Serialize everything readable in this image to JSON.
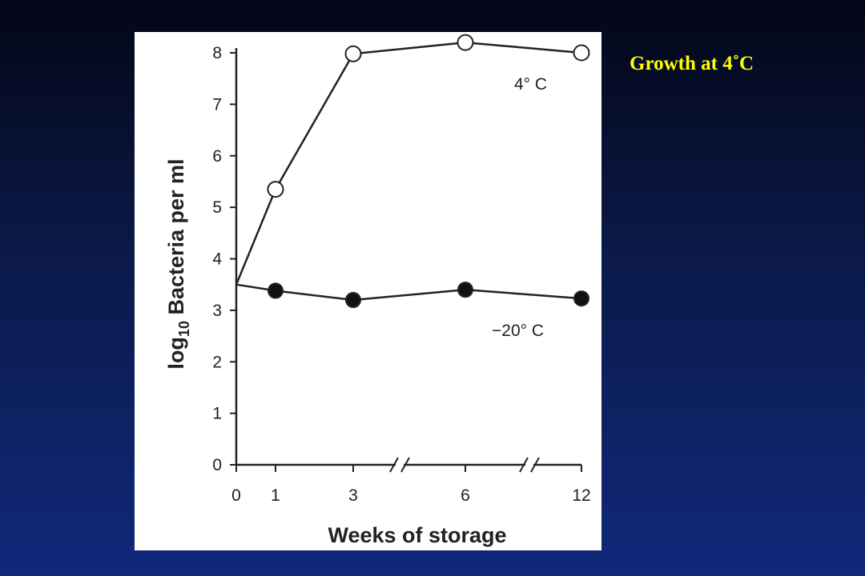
{
  "slide": {
    "title": "Growth at 4˚C"
  },
  "chart_data": {
    "type": "line",
    "xlabel": "Weeks of storage",
    "ylabel": "log10 Bacteria per ml",
    "ylabel_main": "log",
    "ylabel_sub": "10",
    "ylabel_rest": " Bacteria per ml",
    "x_ticks": [
      0,
      1,
      3,
      6,
      12
    ],
    "x_tick_labels": [
      "0",
      "1",
      "3",
      "6",
      "12"
    ],
    "x_axis_breaks": [
      "between 3 and 6",
      "between 6 and 12"
    ],
    "y_ticks": [
      0,
      1,
      2,
      3,
      4,
      5,
      6,
      7,
      8
    ],
    "y_tick_labels": [
      "0",
      "1",
      "2",
      "3",
      "4",
      "5",
      "6",
      "7",
      "8"
    ],
    "ylim": [
      0,
      8
    ],
    "grid": false,
    "series": [
      {
        "name": "4° C",
        "marker": "open-circle",
        "points": [
          {
            "x": 0,
            "y": 3.5,
            "marker": false
          },
          {
            "x": 1,
            "y": 5.35
          },
          {
            "x": 3,
            "y": 7.98
          },
          {
            "x": 6,
            "y": 8.2
          },
          {
            "x": 12,
            "y": 8.0
          }
        ]
      },
      {
        "name": "−20° C",
        "marker": "filled-circle",
        "points": [
          {
            "x": 0,
            "y": 3.5,
            "marker": false
          },
          {
            "x": 1,
            "y": 3.38
          },
          {
            "x": 3,
            "y": 3.2
          },
          {
            "x": 6,
            "y": 3.4
          },
          {
            "x": 12,
            "y": 3.23
          }
        ]
      }
    ]
  }
}
